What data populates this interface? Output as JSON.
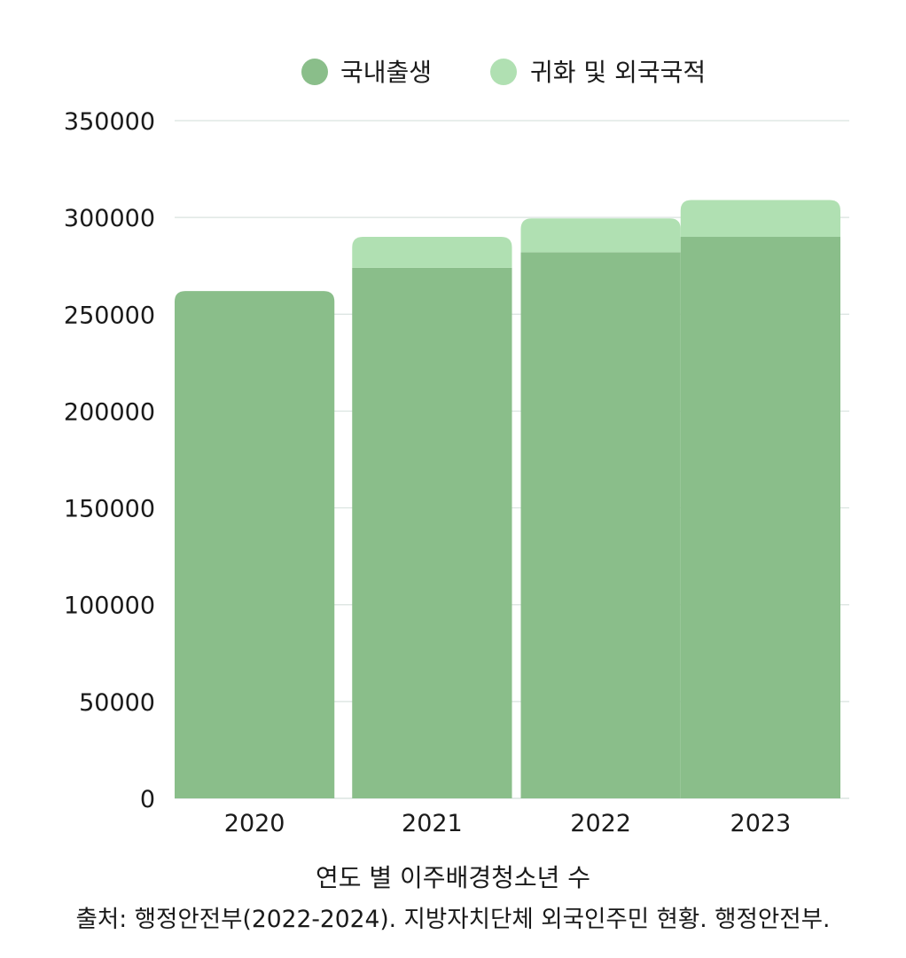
{
  "chart_data": {
    "type": "bar",
    "stacked": true,
    "categories": [
      "2020",
      "2021",
      "2022",
      "2023"
    ],
    "series": [
      {
        "name": "국내출생",
        "color": "#8abe8a",
        "values": [
          262000,
          274000,
          282000,
          290000
        ]
      },
      {
        "name": "귀화 및 외국국적",
        "color": "#b0e0b2",
        "values": [
          0,
          16000,
          17500,
          19000
        ]
      }
    ],
    "title": "",
    "xlabel": "연도 별 이주배경청소년 수",
    "ylabel": "",
    "ylim": [
      0,
      350000
    ],
    "yticks": [
      "0",
      "50000",
      "100000",
      "150000",
      "200000",
      "250000",
      "300000",
      "350000"
    ],
    "grid": true,
    "legend_position": "top"
  },
  "source": "출처: 행정안전부(2022-2024). 지방자치단체 외국인주민 현황. 행정안전부."
}
